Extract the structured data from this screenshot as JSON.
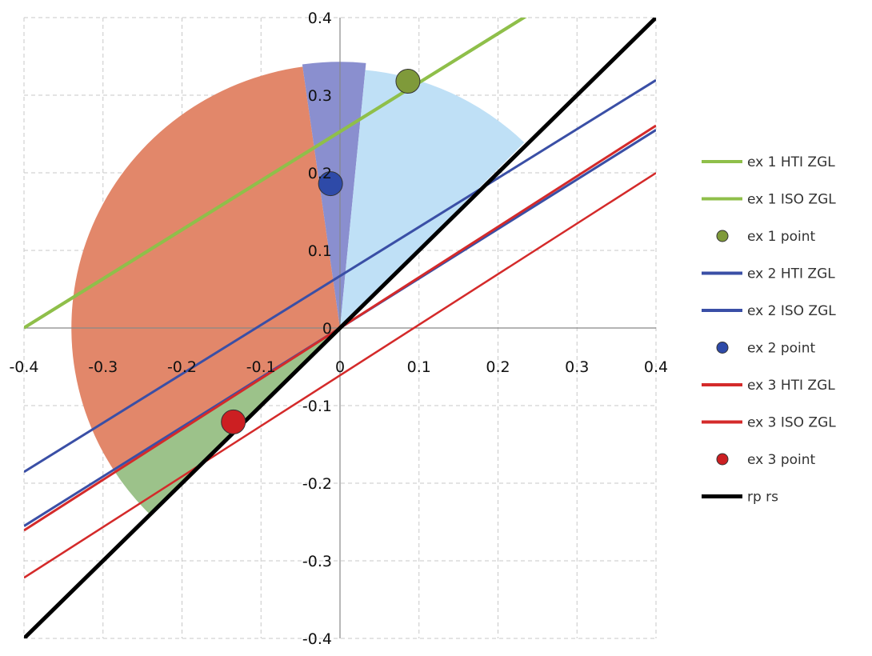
{
  "chart_data": {
    "type": "line",
    "title": "",
    "xlabel": "",
    "ylabel": "",
    "xlim": [
      -0.4,
      0.4
    ],
    "ylim": [
      -0.4,
      0.4
    ],
    "grid": true,
    "legend_position": "right",
    "x_ticks": [
      "-0.4",
      "-0.3",
      "-0.2",
      "-0.1",
      "0",
      "0.1",
      "0.2",
      "0.3",
      "0.4"
    ],
    "y_ticks": [
      "0.4",
      "0.3",
      "0.2",
      "0.1",
      "0",
      "-0.1",
      "-0.2",
      "-0.3",
      "-0.4"
    ],
    "x_tick_values": [
      -0.4,
      -0.3,
      -0.2,
      -0.1,
      0,
      0.1,
      0.2,
      0.3,
      0.4
    ],
    "y_tick_values": [
      0.4,
      0.3,
      0.2,
      0.1,
      0,
      -0.1,
      -0.2,
      -0.3,
      -0.4
    ],
    "wedges": [
      {
        "name": "orange-sector",
        "color": "#e2876a",
        "radius": 0.34,
        "start_deg": 98,
        "end_deg": 213
      },
      {
        "name": "green-sector",
        "color": "#9cc28a",
        "radius": 0.34,
        "start_deg": 213,
        "end_deg": 225
      },
      {
        "name": "purple-sector",
        "color": "#8a8fcf",
        "radius": 0.343,
        "start_deg": 84.5,
        "end_deg": 98
      },
      {
        "name": "lightblue-sector",
        "color": "#bfe0f6",
        "radius": 0.334,
        "start_deg": 45.7,
        "end_deg": 84.5
      }
    ],
    "series": [
      {
        "name": "ex 1 HTI ZGL",
        "kind": "line",
        "color": "#8fbf4a",
        "slope": 0.632,
        "intercept": 0.253,
        "width": 4
      },
      {
        "name": "ex 1 ISO ZGL",
        "kind": "line",
        "color": "#8fbf4a",
        "slope": 0.632,
        "intercept": 0.253,
        "width": 4
      },
      {
        "name": "ex 1 point",
        "kind": "point",
        "color": "#7f9a3a",
        "x": 0.086,
        "y": 0.318
      },
      {
        "name": "ex 2 HTI ZGL",
        "kind": "line",
        "color": "#3a4fa6",
        "slope": 0.631,
        "intercept": 0.067,
        "width": 3
      },
      {
        "name": "ex 2 ISO ZGL",
        "kind": "line",
        "color": "#3a4fa6",
        "slope": 0.638,
        "intercept": 0.0,
        "width": 3
      },
      {
        "name": "ex 2 point",
        "kind": "point",
        "color": "#2e4aa8",
        "x": -0.012,
        "y": 0.186
      },
      {
        "name": "ex 3 HTI ZGL",
        "kind": "line",
        "color": "#d42a2a",
        "slope": 0.652,
        "intercept": 0.0,
        "width": 3
      },
      {
        "name": "ex 3 ISO ZGL",
        "kind": "line",
        "color": "#d42a2a",
        "slope": 0.652,
        "intercept": -0.061,
        "width": 2.5
      },
      {
        "name": "ex 3 point",
        "kind": "point",
        "color": "#cc1f22",
        "x": -0.135,
        "y": -0.121
      },
      {
        "name": "rp    rs",
        "kind": "line",
        "color": "#000000",
        "slope": 1.0,
        "intercept": 0.0,
        "width": 5
      }
    ]
  }
}
